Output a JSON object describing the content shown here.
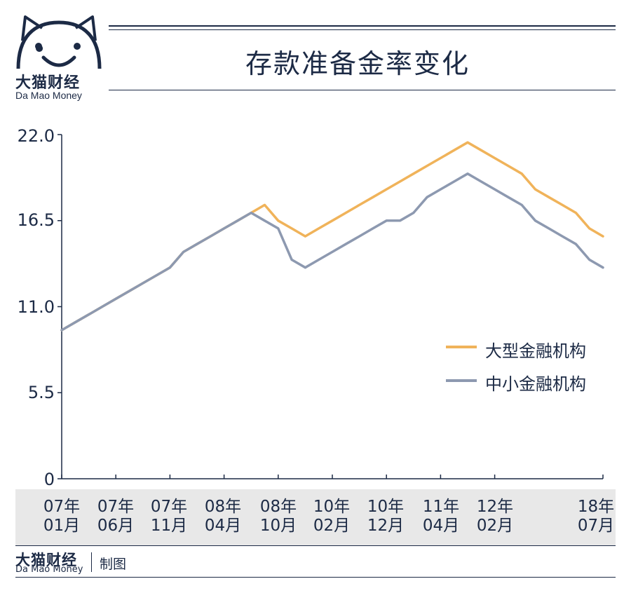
{
  "brand": {
    "name_cn": "大猫财经",
    "name_en": "Da Mao Money"
  },
  "header": {
    "title": "存款准备金率变化"
  },
  "footer": {
    "brand_cn": "大猫财经",
    "brand_en": "Da Mao Money",
    "credit": "制图"
  },
  "colors": {
    "navy": "#1c2a45",
    "large": "#f0b35a",
    "small": "#8d99b0",
    "band": "#e8e8e8"
  },
  "chart_data": {
    "type": "line",
    "ylim": [
      0,
      22
    ],
    "yticks": [
      "0",
      "5.5",
      "11.0",
      "16.5",
      "22.0"
    ],
    "ytick_values": [
      0,
      5.5,
      11,
      16.5,
      22
    ],
    "xticks": [
      {
        "top": "07年",
        "bottom": "01月",
        "t": 0
      },
      {
        "top": "07年",
        "bottom": "06月",
        "t": 4
      },
      {
        "top": "07年",
        "bottom": "11月",
        "t": 8
      },
      {
        "top": "08年",
        "bottom": "04月",
        "t": 12
      },
      {
        "top": "08年",
        "bottom": "10月",
        "t": 16
      },
      {
        "top": "10年",
        "bottom": "02月",
        "t": 20
      },
      {
        "top": "10年",
        "bottom": "12月",
        "t": 24
      },
      {
        "top": "11年",
        "bottom": "04月",
        "t": 28
      },
      {
        "top": "12年",
        "bottom": "02月",
        "t": 32
      },
      {
        "top": "18年",
        "bottom": "07月",
        "t": 40
      }
    ],
    "x_range": [
      0,
      40
    ],
    "series": [
      {
        "name": "大型金融机构",
        "color": "#f0b35a",
        "x": [
          0,
          1,
          2,
          3,
          4,
          5,
          6,
          7,
          8,
          9,
          10,
          11,
          12,
          13,
          14,
          15,
          16,
          17,
          18,
          19,
          20,
          21,
          22,
          23,
          24,
          25,
          26,
          27,
          28,
          29,
          30,
          31,
          32,
          33,
          34,
          35,
          36,
          37,
          38,
          39,
          40
        ],
        "values": [
          9.5,
          10.0,
          10.5,
          11.0,
          11.5,
          12.0,
          12.5,
          13.0,
          13.5,
          14.5,
          15.0,
          15.5,
          16.0,
          16.5,
          17.0,
          17.5,
          16.5,
          16.0,
          15.5,
          16.0,
          16.5,
          17.0,
          17.5,
          18.0,
          18.5,
          19.0,
          19.5,
          20.0,
          20.5,
          21.0,
          21.5,
          21.0,
          20.5,
          20.0,
          19.5,
          18.5,
          18.0,
          17.5,
          17.0,
          16.0,
          15.5
        ]
      },
      {
        "name": "中小金融机构",
        "color": "#8d99b0",
        "x": [
          0,
          1,
          2,
          3,
          4,
          5,
          6,
          7,
          8,
          9,
          10,
          11,
          12,
          13,
          14,
          15,
          16,
          17,
          18,
          19,
          20,
          21,
          22,
          23,
          24,
          25,
          26,
          27,
          28,
          29,
          30,
          31,
          32,
          33,
          34,
          35,
          36,
          37,
          38,
          39,
          40
        ],
        "values": [
          9.5,
          10.0,
          10.5,
          11.0,
          11.5,
          12.0,
          12.5,
          13.0,
          13.5,
          14.5,
          15.0,
          15.5,
          16.0,
          16.5,
          17.0,
          16.5,
          16.0,
          14.0,
          13.5,
          14.0,
          14.5,
          15.0,
          15.5,
          16.0,
          16.5,
          16.5,
          17.0,
          18.0,
          18.5,
          19.0,
          19.5,
          19.0,
          18.5,
          18.0,
          17.5,
          16.5,
          16.0,
          15.5,
          15.0,
          14.0,
          13.5
        ]
      }
    ],
    "legend_position": "right-middle",
    "grid": false
  }
}
